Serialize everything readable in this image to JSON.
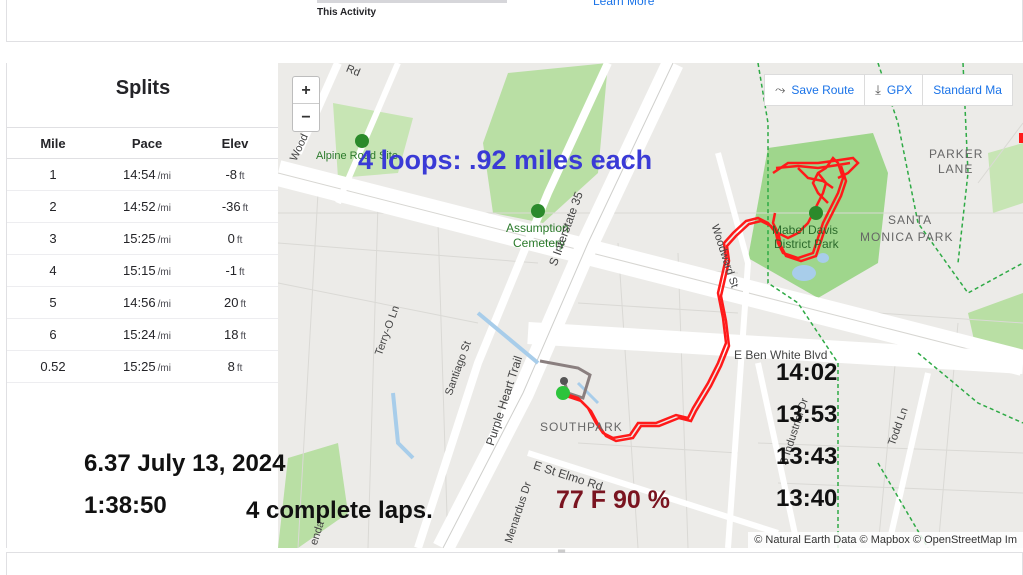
{
  "top": {
    "activity_label": "This Activity",
    "learn_more": "Learn More"
  },
  "splits": {
    "title": "Splits",
    "columns": [
      "Mile",
      "Pace",
      "Elev"
    ],
    "rows": [
      {
        "mile": "1",
        "pace": "14:54",
        "pace_unit": "/mi",
        "elev": "-8",
        "elev_unit": "ft"
      },
      {
        "mile": "2",
        "pace": "14:52",
        "pace_unit": "/mi",
        "elev": "-36",
        "elev_unit": "ft"
      },
      {
        "mile": "3",
        "pace": "15:25",
        "pace_unit": "/mi",
        "elev": "0",
        "elev_unit": "ft"
      },
      {
        "mile": "4",
        "pace": "15:15",
        "pace_unit": "/mi",
        "elev": "-1",
        "elev_unit": "ft"
      },
      {
        "mile": "5",
        "pace": "14:56",
        "pace_unit": "/mi",
        "elev": "20",
        "elev_unit": "ft"
      },
      {
        "mile": "6",
        "pace": "15:24",
        "pace_unit": "/mi",
        "elev": "18",
        "elev_unit": "ft"
      },
      {
        "mile": "0.52",
        "pace": "15:25",
        "pace_unit": "/mi",
        "elev": "8",
        "elev_unit": "ft"
      }
    ]
  },
  "map": {
    "zoom_in": "+",
    "zoom_out": "−",
    "tools": {
      "save_route": "Save Route",
      "gpx": "GPX",
      "standard_map": "Standard Ma"
    },
    "attribution": "© Natural Earth Data © Mapbox © OpenStreetMap Im",
    "labels": {
      "alpine_road": "Alpine Road Site",
      "assumption_1": "Assumption",
      "assumption_2": "Cemetery",
      "interstate": "S Interstate 35",
      "purple_heart": "Purple Heart Trail",
      "terry_o": "Terry-O Ln",
      "santiago": "Santiago St",
      "southpark": "SOUTHPARK",
      "st_elmo": "E St Elmo Rd",
      "ben_white": "E Ben White Blvd",
      "mabel_1": "Mabel Davis",
      "mabel_2": "District Park",
      "santa_monica_1": "SANTA",
      "santa_monica_2": "MONICA PARK",
      "parker_1": "PARKER",
      "parker_2": "LANE",
      "woodward": "Woodward St",
      "industrial": "S Industrial Dr",
      "todd": "Todd Ln",
      "menardus": "Menardus Dr",
      "rd_top": "Rd",
      "wood": "Wood",
      "ann_partial": "enda"
    }
  },
  "annotations": {
    "loops": "4 loops: .92 miles each",
    "lap_times": [
      "14:02",
      "13:53",
      "13:43",
      "13:40"
    ],
    "date": "6.37 July 13, 2024",
    "duration": "1:38:50",
    "complete_laps": "4 complete laps.",
    "weather": "77 F 90 %"
  }
}
